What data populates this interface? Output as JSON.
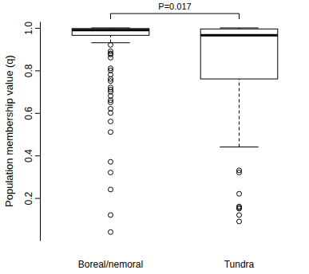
{
  "chart_data": {
    "type": "box",
    "y_label": "Population membership value (q)",
    "annotation": "P=0.017",
    "categories": [
      "Boreal/nemoral",
      "Tundra"
    ],
    "boxes": [
      {
        "low": 0.93,
        "q1": 0.965,
        "median": 0.99,
        "q3": 0.997,
        "high": 1.0,
        "outliers": [
          0.92,
          0.89,
          0.88,
          0.875,
          0.86,
          0.81,
          0.8,
          0.78,
          0.76,
          0.75,
          0.72,
          0.71,
          0.7,
          0.68,
          0.66,
          0.65,
          0.62,
          0.6,
          0.56,
          0.51,
          0.37,
          0.32,
          0.24,
          0.12,
          0.04
        ]
      },
      {
        "low": 0.44,
        "q1": 0.76,
        "median": 0.965,
        "q3": 0.995,
        "high": 1.0,
        "outliers": [
          0.33,
          0.32,
          0.22,
          0.16,
          0.155,
          0.15,
          0.12,
          0.09
        ]
      }
    ],
    "ylim": [
      0,
      1.03
    ],
    "yticks": [
      0.2,
      0.4,
      0.6,
      0.8,
      {
        "value": 1,
        "label": "1.0"
      }
    ]
  }
}
